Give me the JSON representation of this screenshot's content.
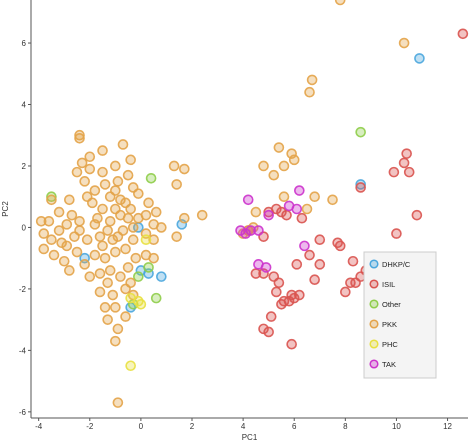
{
  "chart_data": {
    "type": "scatter",
    "title": "",
    "xlabel": "PC1",
    "ylabel": "PC2",
    "xlim": [
      -4.3,
      12.8
    ],
    "ylim": [
      -6.2,
      7.4
    ],
    "x_ticks": [
      "-4",
      "-2",
      "0",
      "2",
      "4",
      "6",
      "8",
      "10",
      "12"
    ],
    "y_ticks": [
      "6",
      "4",
      "2",
      "0",
      "-2",
      "-4",
      "-6"
    ],
    "grid": false,
    "legend_position": "lower-right",
    "series": [
      {
        "name": "DHKP/C",
        "color": "#4aa6dd",
        "points": [
          [
            -0.1,
            0.0
          ],
          [
            0.3,
            -1.5
          ],
          [
            0.0,
            -1.4
          ],
          [
            1.6,
            0.1
          ],
          [
            -0.4,
            -2.6
          ],
          [
            10.9,
            5.5
          ],
          [
            8.6,
            1.4
          ],
          [
            0.8,
            -1.6
          ],
          [
            -2.2,
            -1.0
          ]
        ]
      },
      {
        "name": "ISIL",
        "color": "#d9534f",
        "points": [
          [
            12.6,
            6.3
          ],
          [
            10.4,
            2.4
          ],
          [
            10.3,
            2.1
          ],
          [
            9.9,
            1.8
          ],
          [
            10.5,
            1.8
          ],
          [
            8.6,
            1.3
          ],
          [
            10.8,
            0.4
          ],
          [
            10.0,
            -0.2
          ],
          [
            7.0,
            -0.4
          ],
          [
            7.7,
            -0.5
          ],
          [
            7.8,
            -0.6
          ],
          [
            6.6,
            -0.9
          ],
          [
            7.0,
            -1.2
          ],
          [
            8.3,
            -1.1
          ],
          [
            8.6,
            -1.6
          ],
          [
            8.8,
            -1.4
          ],
          [
            8.2,
            -1.8
          ],
          [
            8.0,
            -2.1
          ],
          [
            8.4,
            -1.8
          ],
          [
            6.8,
            -1.7
          ],
          [
            4.5,
            -1.5
          ],
          [
            4.8,
            -1.5
          ],
          [
            5.2,
            -1.6
          ],
          [
            5.4,
            -1.8
          ],
          [
            5.3,
            -2.1
          ],
          [
            5.9,
            -2.2
          ],
          [
            5.6,
            -2.4
          ],
          [
            5.5,
            -2.5
          ],
          [
            5.8,
            -2.4
          ],
          [
            6.0,
            -2.3
          ],
          [
            5.1,
            -2.9
          ],
          [
            4.8,
            -3.3
          ],
          [
            5.0,
            -3.4
          ],
          [
            5.9,
            -3.8
          ],
          [
            5.3,
            0.6
          ],
          [
            5.5,
            0.5
          ],
          [
            5.0,
            0.5
          ],
          [
            5.7,
            0.4
          ],
          [
            6.3,
            0.3
          ],
          [
            4.2,
            -0.1
          ],
          [
            4.8,
            -0.3
          ],
          [
            6.1,
            -1.2
          ],
          [
            6.2,
            -2.2
          ]
        ]
      },
      {
        "name": "Other",
        "color": "#8fcd4a",
        "points": [
          [
            8.6,
            3.1
          ],
          [
            0.4,
            1.6
          ],
          [
            -3.5,
            1.0
          ],
          [
            0.3,
            -1.3
          ],
          [
            -0.3,
            -2.5
          ],
          [
            -0.1,
            -1.6
          ],
          [
            0.6,
            -2.3
          ]
        ]
      },
      {
        "name": "PKK",
        "color": "#e3a348",
        "points": [
          [
            7.8,
            7.4
          ],
          [
            10.3,
            6.0
          ],
          [
            6.7,
            4.8
          ],
          [
            6.6,
            4.4
          ],
          [
            5.9,
            2.4
          ],
          [
            5.4,
            2.6
          ],
          [
            6.0,
            2.2
          ],
          [
            5.6,
            2.0
          ],
          [
            5.2,
            1.7
          ],
          [
            4.8,
            2.0
          ],
          [
            6.8,
            1.0
          ],
          [
            7.5,
            0.9
          ],
          [
            5.6,
            1.0
          ],
          [
            6.5,
            0.6
          ],
          [
            4.5,
            0.5
          ],
          [
            4.4,
            0.0
          ],
          [
            4.2,
            -0.1
          ],
          [
            4.0,
            -0.2
          ],
          [
            1.7,
            1.9
          ],
          [
            1.3,
            2.0
          ],
          [
            1.4,
            1.4
          ],
          [
            2.4,
            0.4
          ],
          [
            1.7,
            0.3
          ],
          [
            0.8,
            0.0
          ],
          [
            1.4,
            -0.3
          ],
          [
            -2.4,
            3.0
          ],
          [
            -2.4,
            2.9
          ],
          [
            -1.5,
            2.5
          ],
          [
            -2.3,
            2.1
          ],
          [
            -0.4,
            2.2
          ],
          [
            -0.7,
            2.7
          ],
          [
            -2.0,
            2.3
          ],
          [
            -1.0,
            2.0
          ],
          [
            -1.5,
            1.8
          ],
          [
            -0.5,
            1.7
          ],
          [
            -0.9,
            1.5
          ],
          [
            -2.2,
            1.5
          ],
          [
            -1.4,
            1.4
          ],
          [
            -1.8,
            1.2
          ],
          [
            -1.2,
            1.0
          ],
          [
            -0.8,
            0.9
          ],
          [
            -0.1,
            1.1
          ],
          [
            -0.4,
            0.6
          ],
          [
            -0.8,
            0.4
          ],
          [
            -1.0,
            0.6
          ],
          [
            -2.1,
            1.0
          ],
          [
            -2.8,
            0.9
          ],
          [
            -3.5,
            0.9
          ],
          [
            -3.2,
            0.5
          ],
          [
            -2.7,
            0.4
          ],
          [
            -3.6,
            0.2
          ],
          [
            -3.9,
            0.2
          ],
          [
            -2.4,
            0.2
          ],
          [
            -1.7,
            0.3
          ],
          [
            -1.2,
            0.2
          ],
          [
            -0.5,
            0.3
          ],
          [
            0.6,
            0.5
          ],
          [
            0.5,
            0.1
          ],
          [
            0.2,
            0.4
          ],
          [
            -0.1,
            0.3
          ],
          [
            0.2,
            -0.2
          ],
          [
            -3.8,
            -0.2
          ],
          [
            -3.5,
            -0.4
          ],
          [
            -3.1,
            -0.5
          ],
          [
            -2.6,
            -0.3
          ],
          [
            -2.1,
            -0.4
          ],
          [
            -1.6,
            -0.3
          ],
          [
            -1.1,
            -0.4
          ],
          [
            -0.7,
            -0.1
          ],
          [
            -0.3,
            -0.4
          ],
          [
            -3.8,
            -0.7
          ],
          [
            -3.4,
            -0.9
          ],
          [
            -3.0,
            -1.1
          ],
          [
            -2.5,
            -0.8
          ],
          [
            -2.2,
            -1.2
          ],
          [
            -1.8,
            -0.9
          ],
          [
            -1.4,
            -1.0
          ],
          [
            -1.0,
            -0.8
          ],
          [
            -0.6,
            -0.7
          ],
          [
            -0.2,
            -1.0
          ],
          [
            0.2,
            -0.9
          ],
          [
            -2.8,
            -1.4
          ],
          [
            -2.0,
            -1.6
          ],
          [
            -1.6,
            -1.5
          ],
          [
            -1.2,
            -1.4
          ],
          [
            -0.8,
            -1.6
          ],
          [
            -0.4,
            -1.8
          ],
          [
            -1.3,
            -1.8
          ],
          [
            -1.6,
            -2.1
          ],
          [
            -1.1,
            -2.2
          ],
          [
            -0.6,
            -2.0
          ],
          [
            -0.3,
            -2.2
          ],
          [
            -1.4,
            -2.6
          ],
          [
            -1.0,
            -2.6
          ],
          [
            -0.6,
            -2.9
          ],
          [
            -1.3,
            -3.0
          ],
          [
            -0.9,
            -3.3
          ],
          [
            -1.0,
            -3.7
          ],
          [
            -0.9,
            -5.7
          ],
          [
            -3.2,
            -0.1
          ],
          [
            -2.9,
            0.1
          ],
          [
            -1.5,
            0.6
          ],
          [
            -1.9,
            0.8
          ],
          [
            -0.3,
            0.0
          ],
          [
            -0.9,
            -0.3
          ],
          [
            -1.3,
            -0.1
          ],
          [
            -2.4,
            -0.1
          ],
          [
            -1.8,
            0.1
          ],
          [
            -0.6,
            0.8
          ],
          [
            0.3,
            0.8
          ],
          [
            -1.5,
            -0.6
          ],
          [
            -2.9,
            -0.6
          ],
          [
            -0.5,
            -1.3
          ],
          [
            0.5,
            -0.4
          ],
          [
            -2.0,
            1.9
          ],
          [
            -1.0,
            1.2
          ],
          [
            -0.3,
            1.3
          ],
          [
            -2.5,
            1.8
          ],
          [
            0.5,
            -1.0
          ]
        ]
      },
      {
        "name": "PHC",
        "color": "#e8e040",
        "points": [
          [
            -0.4,
            -4.5
          ],
          [
            -0.1,
            -2.4
          ],
          [
            0.0,
            -2.5
          ],
          [
            -0.4,
            -2.3
          ],
          [
            0.2,
            -0.4
          ]
        ]
      },
      {
        "name": "TAK",
        "color": "#cc33cc",
        "points": [
          [
            4.2,
            0.9
          ],
          [
            6.2,
            1.2
          ],
          [
            5.8,
            0.7
          ],
          [
            6.1,
            0.6
          ],
          [
            5.0,
            0.4
          ],
          [
            4.6,
            -0.1
          ],
          [
            4.3,
            -0.1
          ],
          [
            4.1,
            -0.2
          ],
          [
            3.9,
            -0.1
          ],
          [
            6.4,
            -0.6
          ],
          [
            4.6,
            -1.2
          ],
          [
            4.9,
            -1.3
          ]
        ]
      }
    ]
  }
}
